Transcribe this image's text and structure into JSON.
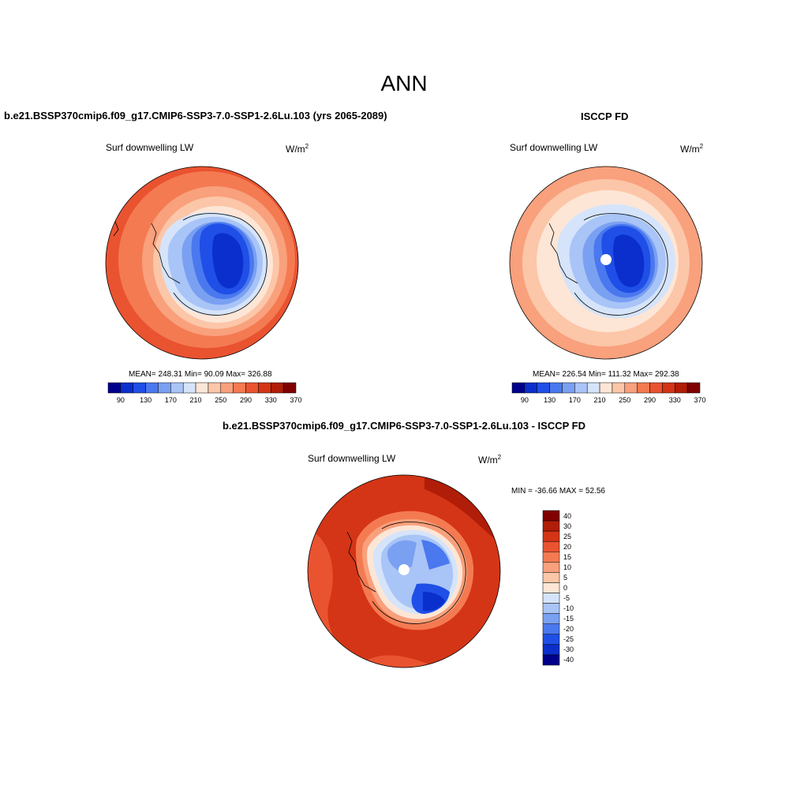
{
  "title": "ANN",
  "panels": [
    {
      "id": "model",
      "title": "b.e21.BSSP370cmip6.f09_g17.CMIP6-SSP3-7.0-SSP1-2.6Lu.103 (yrs 2065-2089)",
      "variable": "Surf downwelling LW",
      "units_base": "W/m",
      "units_exp": "2",
      "stats": "MEAN= 248.31  Min=  90.09  Max= 326.88",
      "colorbar_ticks": [
        "90",
        "130",
        "170",
        "210",
        "250",
        "290",
        "330",
        "370"
      ]
    },
    {
      "id": "obs",
      "title": "ISCCP FD",
      "variable": "Surf downwelling LW",
      "units_base": "W/m",
      "units_exp": "2",
      "stats": "MEAN= 226.54  Min= 111.32  Max= 292.38",
      "colorbar_ticks": [
        "90",
        "130",
        "170",
        "210",
        "250",
        "290",
        "330",
        "370"
      ]
    },
    {
      "id": "diff",
      "title": "b.e21.BSSP370cmip6.f09_g17.CMIP6-SSP3-7.0-SSP1-2.6Lu.103 - ISCCP FD",
      "variable": "Surf downwelling LW",
      "units_base": "W/m",
      "units_exp": "2",
      "stats": "MIN = -36.66 MAX =  52.56",
      "colorbar_ticks": [
        "40",
        "30",
        "25",
        "20",
        "15",
        "10",
        "5",
        "0",
        "-5",
        "-10",
        "-15",
        "-20",
        "-25",
        "-30",
        "-40"
      ]
    }
  ],
  "colors": {
    "abs_scale": [
      "#00008b",
      "#0a2fcc",
      "#1f4fe6",
      "#4a78ee",
      "#7aa0f2",
      "#a9c4f6",
      "#d5e4fa",
      "#fde6d6",
      "#fcc6a8",
      "#f9a07c",
      "#f47a52",
      "#ea5330",
      "#d43516",
      "#b01d08",
      "#800000"
    ],
    "diff_scale": [
      "#800000",
      "#b01d08",
      "#d43516",
      "#ea5330",
      "#f47a52",
      "#f9a07c",
      "#fcc6a8",
      "#fde6d6",
      "#d5e4fa",
      "#a9c4f6",
      "#7aa0f2",
      "#4a78ee",
      "#1f4fe6",
      "#0a2fcc",
      "#00008b"
    ]
  }
}
